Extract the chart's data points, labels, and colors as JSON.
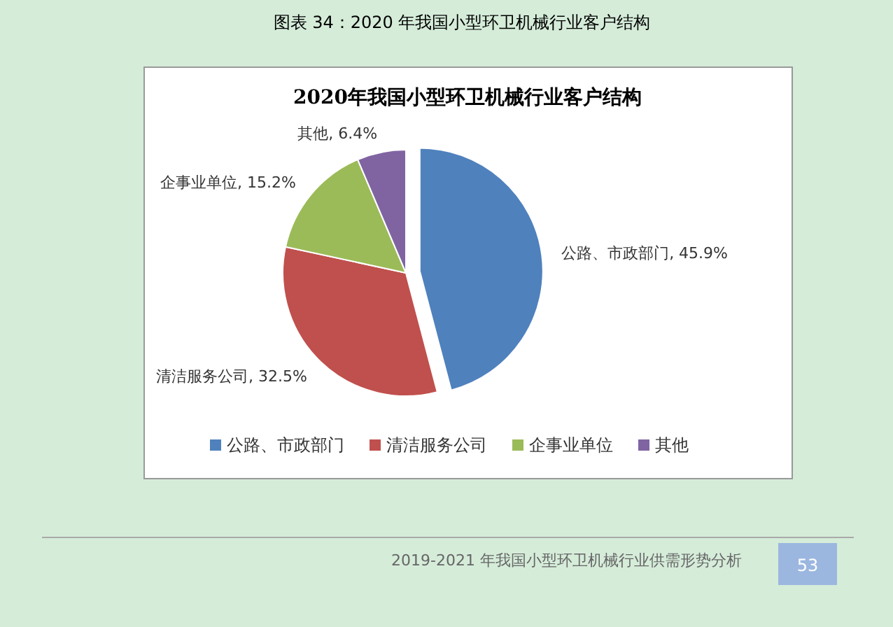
{
  "chart_data": {
    "type": "pie",
    "title": "图表 34：2020 年我国小型环卫机械行业客户结构",
    "subtitle": "2020年我国小型环卫机械行业客户结构",
    "categories": [
      "公路、市政部门",
      "清洁服务公司",
      "企事业单位",
      "其他"
    ],
    "values": [
      45.9,
      32.5,
      15.2,
      6.4
    ],
    "value_labels": [
      "公路、市政部门, 45.9%",
      "清洁服务公司, 32.5%",
      "企事业单位, 15.2%",
      "其他, 6.4%"
    ],
    "colors": [
      "#4f81bd",
      "#c0504d",
      "#9bbb59",
      "#8064a2"
    ],
    "legend": "bottom",
    "annotations": [
      "2019-2021 年我国小型环卫机械行业供需形势分析",
      "53"
    ]
  }
}
